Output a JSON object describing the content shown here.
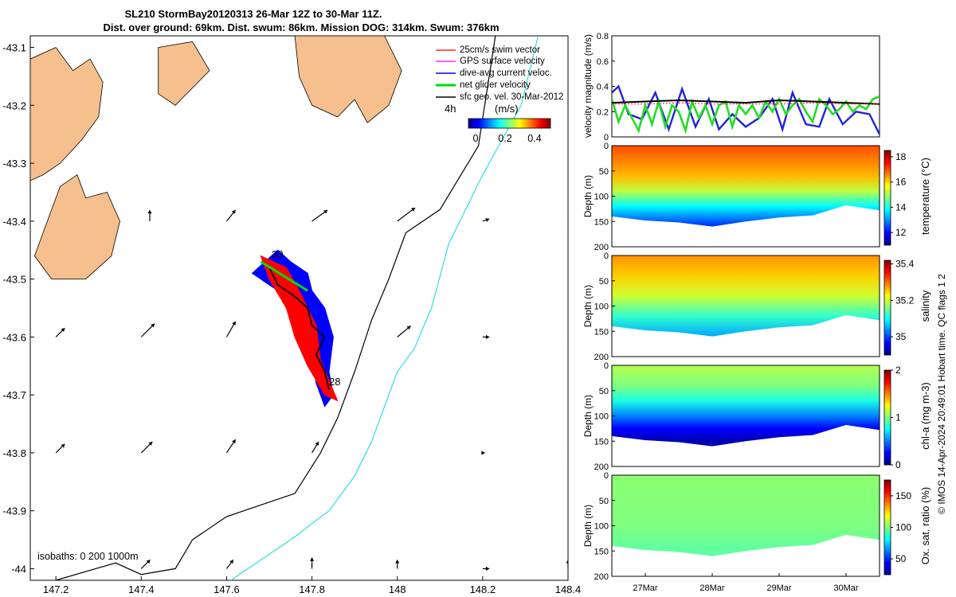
{
  "title": {
    "line1": "SL210 StormBay20120313 26-Mar 12Z to 30-Mar 11Z.",
    "line2": "Dist. over ground: 69km. Dist. swum: 86km. Mission DOG: 314km. Swum: 376km"
  },
  "credit": "© IMOS 14-Apr-2024 20:49:01 Hobart time. QC flags 1  2",
  "colors": {
    "land": "#f5bf8e",
    "isobath_200": "#000000",
    "isobath_1000": "#33dddd",
    "swim": "#ff0000",
    "gps": "#ff00ff",
    "dive_avg": "#0000ff",
    "net": "#00dd00",
    "geo": "#000000"
  },
  "map": {
    "legend": [
      {
        "label": "25cm/s swim vector",
        "color": "#ff0000"
      },
      {
        "label": "GPS surface velocity",
        "color": "#ff00ff"
      },
      {
        "label": "dive-avg current veloc.",
        "color": "#0000ff"
      },
      {
        "label": "net glider velocity",
        "color": "#00dd00"
      },
      {
        "label": "sfc geo. vel. 30-Mar-2012",
        "color": "#000000"
      }
    ],
    "colorbar_label": "4h",
    "colorbar_unit": "(m/s)",
    "colorbar_ticks": [
      "0",
      "0.2",
      "0.4"
    ],
    "isobath_label": "isobaths: 0   200  1000m",
    "day_labels": [
      "30",
      "28"
    ]
  },
  "chart_data": [
    {
      "type": "map",
      "xlabel": "",
      "ylabel": "",
      "xlim": [
        147.14,
        148.4
      ],
      "ylim": [
        -44.02,
        -43.08
      ],
      "xticks": [
        "147.2",
        "147.4",
        "147.6",
        "147.8",
        "148",
        "148.2",
        "148.4"
      ],
      "yticks": [
        "-43.1",
        "-43.2",
        "-43.3",
        "-43.4",
        "-43.5",
        "-43.6",
        "-43.7",
        "-43.8",
        "-43.9",
        "-44"
      ],
      "land": [
        [
          [
            147.14,
            -43.12
          ],
          [
            147.2,
            -43.1
          ],
          [
            147.24,
            -43.14
          ],
          [
            147.28,
            -43.12
          ],
          [
            147.31,
            -43.16
          ],
          [
            147.3,
            -43.22
          ],
          [
            147.26,
            -43.26
          ],
          [
            147.21,
            -43.3
          ],
          [
            147.17,
            -43.32
          ],
          [
            147.14,
            -43.33
          ]
        ],
        [
          [
            147.21,
            -43.34
          ],
          [
            147.25,
            -43.32
          ],
          [
            147.27,
            -43.36
          ],
          [
            147.32,
            -43.35
          ],
          [
            147.35,
            -43.4
          ],
          [
            147.33,
            -43.46
          ],
          [
            147.27,
            -43.5
          ],
          [
            147.19,
            -43.5
          ],
          [
            147.15,
            -43.46
          ],
          [
            147.18,
            -43.4
          ]
        ],
        [
          [
            147.44,
            -43.1
          ],
          [
            147.52,
            -43.09
          ],
          [
            147.56,
            -43.14
          ],
          [
            147.48,
            -43.2
          ],
          [
            147.44,
            -43.18
          ]
        ],
        [
          [
            147.76,
            -43.08
          ],
          [
            147.97,
            -43.08
          ],
          [
            148.01,
            -43.14
          ],
          [
            147.98,
            -43.2
          ],
          [
            147.93,
            -43.23
          ],
          [
            147.9,
            -43.19
          ],
          [
            147.86,
            -43.22
          ],
          [
            147.8,
            -43.2
          ],
          [
            147.77,
            -43.15
          ]
        ]
      ],
      "isobath_200": [
        [
          148.23,
          -43.08
        ],
        [
          148.19,
          -43.27
        ],
        [
          148.1,
          -43.38
        ],
        [
          148.02,
          -43.42
        ],
        [
          147.98,
          -43.5
        ],
        [
          147.94,
          -43.57
        ],
        [
          147.9,
          -43.66
        ],
        [
          147.86,
          -43.74
        ],
        [
          147.82,
          -43.8
        ],
        [
          147.76,
          -43.87
        ],
        [
          147.6,
          -43.91
        ],
        [
          147.52,
          -43.95
        ],
        [
          147.48,
          -44.0
        ],
        [
          147.4,
          -44.01
        ],
        [
          147.34,
          -43.99
        ],
        [
          147.2,
          -44.02
        ]
      ],
      "isobath_1000": [
        [
          148.33,
          -43.08
        ],
        [
          148.29,
          -43.2
        ],
        [
          148.2,
          -43.32
        ],
        [
          148.12,
          -43.44
        ],
        [
          148.08,
          -43.55
        ],
        [
          148.04,
          -43.62
        ],
        [
          148.0,
          -43.66
        ],
        [
          147.97,
          -43.72
        ],
        [
          147.94,
          -43.78
        ],
        [
          147.9,
          -43.84
        ],
        [
          147.84,
          -43.9
        ],
        [
          147.75,
          -43.95
        ],
        [
          147.65,
          -44.0
        ],
        [
          147.61,
          -44.02
        ]
      ],
      "track": [
        [
          147.7,
          -43.48
        ],
        [
          147.72,
          -43.51
        ],
        [
          147.76,
          -43.53
        ],
        [
          147.79,
          -43.55
        ],
        [
          147.8,
          -43.58
        ],
        [
          147.83,
          -43.6
        ],
        [
          147.81,
          -43.63
        ],
        [
          147.83,
          -43.66
        ],
        [
          147.84,
          -43.69
        ]
      ],
      "glider_patch": [
        [
          147.66,
          -43.49
        ],
        [
          147.72,
          -43.45
        ],
        [
          147.75,
          -43.47
        ],
        [
          147.79,
          -43.49
        ],
        [
          147.8,
          -43.52
        ],
        [
          147.83,
          -43.55
        ],
        [
          147.85,
          -43.6
        ],
        [
          147.84,
          -43.66
        ],
        [
          147.85,
          -43.7
        ],
        [
          147.83,
          -43.72
        ],
        [
          147.81,
          -43.68
        ],
        [
          147.79,
          -43.6
        ],
        [
          147.75,
          -43.56
        ],
        [
          147.72,
          -43.52
        ]
      ],
      "swim_patch": [
        [
          147.68,
          -43.46
        ],
        [
          147.74,
          -43.48
        ],
        [
          147.77,
          -43.52
        ],
        [
          147.81,
          -43.58
        ],
        [
          147.82,
          -43.64
        ],
        [
          147.86,
          -43.71
        ],
        [
          147.83,
          -43.7
        ],
        [
          147.79,
          -43.65
        ],
        [
          147.76,
          -43.6
        ],
        [
          147.74,
          -43.55
        ],
        [
          147.7,
          -43.5
        ]
      ],
      "net_vector": {
        "from": [
          147.68,
          -43.47
        ],
        "to": [
          147.79,
          -43.52
        ]
      },
      "geo_vectors": [
        {
          "x": 147.42,
          "y": -43.4,
          "u": 0.0,
          "v": 0.5
        },
        {
          "x": 147.6,
          "y": -43.4,
          "u": 0.4,
          "v": 0.5
        },
        {
          "x": 147.8,
          "y": -43.4,
          "u": 0.7,
          "v": 0.5
        },
        {
          "x": 148.0,
          "y": -43.4,
          "u": 0.8,
          "v": 0.6
        },
        {
          "x": 148.2,
          "y": -43.4,
          "u": 0.3,
          "v": 0.1
        },
        {
          "x": 148.4,
          "y": -43.4,
          "u": 0.1,
          "v": -0.4
        },
        {
          "x": 147.2,
          "y": -43.6,
          "u": 0.4,
          "v": 0.4
        },
        {
          "x": 147.4,
          "y": -43.6,
          "u": 0.6,
          "v": 0.6
        },
        {
          "x": 147.6,
          "y": -43.6,
          "u": 0.4,
          "v": 0.7
        },
        {
          "x": 148.0,
          "y": -43.6,
          "u": 0.6,
          "v": 0.5
        },
        {
          "x": 148.2,
          "y": -43.6,
          "u": 0.3,
          "v": 0.0
        },
        {
          "x": 148.4,
          "y": -43.6,
          "u": 0.1,
          "v": -0.5
        },
        {
          "x": 147.2,
          "y": -43.8,
          "u": 0.4,
          "v": 0.4
        },
        {
          "x": 147.4,
          "y": -43.8,
          "u": 0.5,
          "v": 0.5
        },
        {
          "x": 147.6,
          "y": -43.8,
          "u": 0.4,
          "v": 0.6
        },
        {
          "x": 147.8,
          "y": -43.8,
          "u": 0.3,
          "v": 0.5
        },
        {
          "x": 148.2,
          "y": -43.8,
          "u": 0.1,
          "v": 0.0
        },
        {
          "x": 148.4,
          "y": -43.8,
          "u": 0.1,
          "v": -0.4
        },
        {
          "x": 147.4,
          "y": -44.0,
          "u": 0.4,
          "v": 0.4
        },
        {
          "x": 147.6,
          "y": -44.0,
          "u": 0.3,
          "v": 0.4
        },
        {
          "x": 147.8,
          "y": -44.0,
          "u": 0.0,
          "v": 0.5
        },
        {
          "x": 148.0,
          "y": -44.0,
          "u": 0.0,
          "v": 0.4
        },
        {
          "x": 148.2,
          "y": -44.0,
          "u": 0.3,
          "v": 0.0
        },
        {
          "x": 148.4,
          "y": -44.0,
          "u": 0.0,
          "v": 0.4
        }
      ]
    },
    {
      "type": "line",
      "xlabel": "",
      "ylabel": "velocity magnitude (m/s)",
      "xlim": [
        26.5,
        30.5
      ],
      "ylim": [
        0,
        0.8
      ],
      "yticks": [
        "0",
        "0.2",
        "0.4",
        "0.6",
        "0.8"
      ],
      "series": [
        {
          "name": "dive-avg current",
          "color": "#2222dd",
          "x": [
            26.5,
            26.6,
            26.75,
            26.95,
            27.15,
            27.35,
            27.55,
            27.75,
            27.95,
            28.1,
            28.3,
            28.5,
            28.7,
            28.9,
            29.05,
            29.2,
            29.4,
            29.6,
            29.75,
            29.95,
            30.15,
            30.35,
            30.5
          ],
          "values": [
            0.35,
            0.4,
            0.18,
            0.14,
            0.35,
            0.06,
            0.38,
            0.08,
            0.3,
            0.06,
            0.18,
            0.08,
            0.15,
            0.3,
            0.06,
            0.35,
            0.1,
            0.08,
            0.3,
            0.1,
            0.2,
            0.18,
            0.02
          ]
        },
        {
          "name": "net glider velocity",
          "color": "#22dd22",
          "x": [
            26.5,
            26.6,
            26.7,
            26.8,
            26.9,
            27.0,
            27.1,
            27.2,
            27.3,
            27.4,
            27.5,
            27.6,
            27.7,
            27.8,
            27.9,
            28.0,
            28.1,
            28.2,
            28.3,
            28.4,
            28.5,
            28.6,
            28.7,
            28.8,
            28.9,
            29.0,
            29.1,
            29.2,
            29.3,
            29.4,
            29.5,
            29.6,
            29.7,
            29.8,
            29.9,
            30.0,
            30.1,
            30.2,
            30.3,
            30.4,
            30.5
          ],
          "values": [
            0.3,
            0.12,
            0.25,
            0.15,
            0.05,
            0.25,
            0.1,
            0.28,
            0.08,
            0.25,
            0.2,
            0.05,
            0.28,
            0.15,
            0.25,
            0.1,
            0.25,
            0.28,
            0.08,
            0.25,
            0.18,
            0.25,
            0.15,
            0.28,
            0.2,
            0.3,
            0.18,
            0.25,
            0.3,
            0.2,
            0.12,
            0.3,
            0.25,
            0.18,
            0.22,
            0.28,
            0.2,
            0.25,
            0.22,
            0.3,
            0.32
          ]
        },
        {
          "name": "sfc geo. vel.",
          "color": "#000000",
          "x": [
            26.5,
            27.0,
            27.5,
            28.0,
            28.5,
            29.0,
            29.5,
            30.0,
            30.5
          ],
          "values": [
            0.27,
            0.28,
            0.29,
            0.28,
            0.27,
            0.29,
            0.28,
            0.27,
            0.26
          ]
        },
        {
          "name": "swim",
          "color": "#ff3333",
          "x": [
            26.5,
            27.0,
            27.5,
            28.0,
            28.5,
            29.0,
            29.5,
            30.0,
            30.5
          ],
          "values": [
            0.26,
            0.26,
            0.27,
            0.26,
            0.26,
            0.26,
            0.27,
            0.26,
            0.26
          ]
        }
      ]
    },
    {
      "type": "heatmap",
      "name": "temperature",
      "xlabel": "",
      "ylabel": "Depth (m)",
      "clabel": "temperature (°C)",
      "xlim": [
        26.5,
        30.5
      ],
      "ylim": [
        0,
        200
      ],
      "yticks": [
        "0",
        "50",
        "100",
        "150",
        "200"
      ],
      "clim": [
        11,
        18.5
      ],
      "cticks": [
        "12",
        "14",
        "16",
        "18"
      ],
      "bottom_depth": [
        [
          26.5,
          140
        ],
        [
          27.0,
          148
        ],
        [
          27.5,
          152
        ],
        [
          28.0,
          160
        ],
        [
          28.5,
          150
        ],
        [
          29.0,
          142
        ],
        [
          29.5,
          138
        ],
        [
          30.0,
          118
        ],
        [
          30.5,
          128
        ]
      ],
      "layers": [
        [
          0,
          17.0
        ],
        [
          60,
          16.2
        ],
        [
          90,
          15.2
        ],
        [
          120,
          13.8
        ],
        [
          150,
          12.6
        ],
        [
          165,
          12.0
        ]
      ]
    },
    {
      "type": "heatmap",
      "name": "salinity",
      "xlabel": "",
      "ylabel": "Depth (m)",
      "clabel": "salinity",
      "xlim": [
        26.5,
        30.5
      ],
      "ylim": [
        0,
        200
      ],
      "yticks": [
        "0",
        "50",
        "100",
        "150",
        "200"
      ],
      "clim": [
        34.9,
        35.42
      ],
      "cticks": [
        "35",
        "35.2",
        "35.4"
      ],
      "bottom_depth": [
        [
          26.5,
          140
        ],
        [
          27.0,
          148
        ],
        [
          27.5,
          152
        ],
        [
          28.0,
          160
        ],
        [
          28.5,
          150
        ],
        [
          29.0,
          142
        ],
        [
          29.5,
          138
        ],
        [
          30.0,
          118
        ],
        [
          30.5,
          128
        ]
      ],
      "layers": [
        [
          0,
          35.28
        ],
        [
          40,
          35.25
        ],
        [
          80,
          35.2
        ],
        [
          120,
          35.12
        ],
        [
          160,
          35.05
        ]
      ]
    },
    {
      "type": "heatmap",
      "name": "chl-a",
      "xlabel": "",
      "ylabel": "Depth (m)",
      "clabel": "chl-a (mg m-3)",
      "xlim": [
        26.5,
        30.5
      ],
      "ylim": [
        0,
        200
      ],
      "yticks": [
        "0",
        "50",
        "100",
        "150",
        "200"
      ],
      "clim": [
        0,
        2
      ],
      "cticks": [
        "0",
        "1",
        "2"
      ],
      "bottom_depth": [
        [
          26.5,
          140
        ],
        [
          27.0,
          148
        ],
        [
          27.5,
          152
        ],
        [
          28.0,
          160
        ],
        [
          28.5,
          150
        ],
        [
          29.0,
          142
        ],
        [
          29.5,
          138
        ],
        [
          30.0,
          118
        ],
        [
          30.5,
          128
        ]
      ],
      "layers": [
        [
          0,
          1.1
        ],
        [
          40,
          1.0
        ],
        [
          70,
          0.8
        ],
        [
          100,
          0.5
        ],
        [
          125,
          0.25
        ],
        [
          150,
          0.1
        ]
      ]
    },
    {
      "type": "heatmap",
      "name": "oxygen",
      "xlabel": "",
      "ylabel": "Depth (m)",
      "clabel": "Ox. sat. ratio (%)",
      "xlim": [
        26.5,
        30.5
      ],
      "ylim": [
        0,
        200
      ],
      "xticks": [
        "27Mar",
        "28Mar",
        "29Mar",
        "30Mar"
      ],
      "yticks": [
        "0",
        "50",
        "100",
        "150",
        "200"
      ],
      "clim": [
        25,
        175
      ],
      "cticks": [
        "50",
        "100",
        "150"
      ],
      "bottom_depth": [
        [
          26.5,
          140
        ],
        [
          27.0,
          148
        ],
        [
          27.5,
          152
        ],
        [
          28.0,
          160
        ],
        [
          28.5,
          150
        ],
        [
          29.0,
          142
        ],
        [
          29.5,
          138
        ],
        [
          30.0,
          118
        ],
        [
          30.5,
          128
        ]
      ],
      "layers": [
        [
          0,
          102
        ],
        [
          100,
          100
        ],
        [
          150,
          95
        ]
      ]
    }
  ]
}
